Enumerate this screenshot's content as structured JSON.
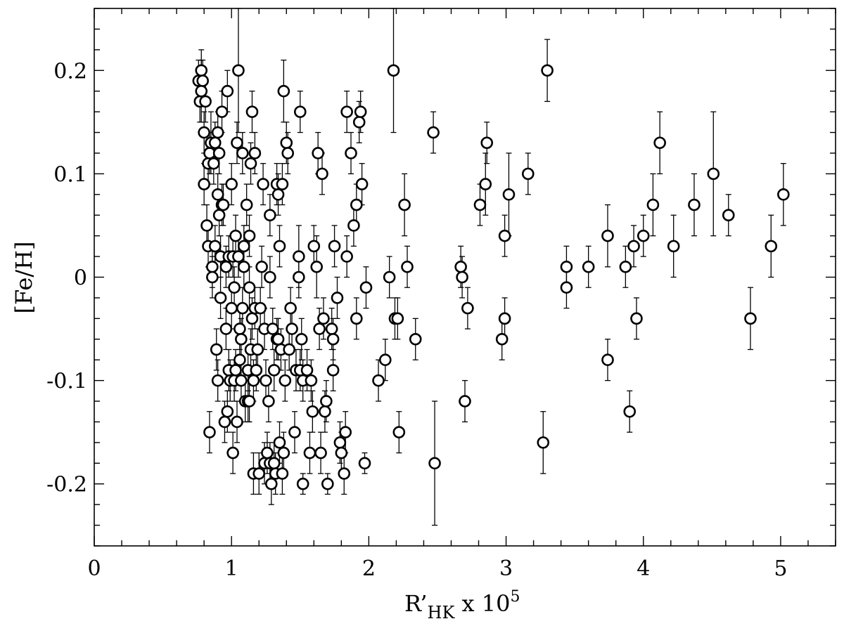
{
  "chart_data": {
    "type": "scatter",
    "xlabel": "R’HK x 10^5",
    "ylabel": "[Fe/H]",
    "xlim": [
      0,
      5.4
    ],
    "ylim": [
      -0.26,
      0.26
    ],
    "x_ticks": [
      0,
      1,
      2,
      3,
      4,
      5
    ],
    "y_ticks": [
      -0.2,
      -0.1,
      0,
      0.1,
      0.2
    ],
    "x_tick_labels": [
      "0",
      "1",
      "2",
      "3",
      "4",
      "5"
    ],
    "y_tick_labels": [
      "-0.2",
      "-0.1",
      "0",
      "0.1",
      "0.2"
    ],
    "marker": "open-circle",
    "grid": false,
    "points": [
      {
        "x": 0.76,
        "y": 0.19,
        "err": 0.02
      },
      {
        "x": 0.77,
        "y": 0.17,
        "err": 0.02
      },
      {
        "x": 0.78,
        "y": 0.2,
        "err": 0.02
      },
      {
        "x": 0.78,
        "y": 0.18,
        "err": 0.03
      },
      {
        "x": 0.79,
        "y": 0.19,
        "err": 0.02
      },
      {
        "x": 0.8,
        "y": 0.14,
        "err": 0.02
      },
      {
        "x": 0.8,
        "y": 0.09,
        "err": 0.02
      },
      {
        "x": 0.81,
        "y": 0.17,
        "err": 0.02
      },
      {
        "x": 0.82,
        "y": 0.05,
        "err": 0.02
      },
      {
        "x": 0.83,
        "y": 0.11,
        "err": 0.02
      },
      {
        "x": 0.83,
        "y": 0.03,
        "err": 0.02
      },
      {
        "x": 0.84,
        "y": 0.12,
        "err": 0.02
      },
      {
        "x": 0.84,
        "y": -0.15,
        "err": 0.02
      },
      {
        "x": 0.85,
        "y": 0.13,
        "err": 0.03
      },
      {
        "x": 0.86,
        "y": 0.01,
        "err": 0.02
      },
      {
        "x": 0.86,
        "y": 0.0,
        "err": 0.02
      },
      {
        "x": 0.87,
        "y": 0.11,
        "err": 0.02
      },
      {
        "x": 0.88,
        "y": 0.13,
        "err": 0.02
      },
      {
        "x": 0.88,
        "y": 0.03,
        "err": 0.02
      },
      {
        "x": 0.89,
        "y": -0.07,
        "err": 0.02
      },
      {
        "x": 0.9,
        "y": 0.14,
        "err": 0.02
      },
      {
        "x": 0.9,
        "y": 0.08,
        "err": 0.02
      },
      {
        "x": 0.9,
        "y": -0.1,
        "err": 0.02
      },
      {
        "x": 0.91,
        "y": 0.12,
        "err": 0.02
      },
      {
        "x": 0.91,
        "y": 0.06,
        "err": 0.02
      },
      {
        "x": 0.92,
        "y": 0.02,
        "err": 0.02
      },
      {
        "x": 0.92,
        "y": -0.02,
        "err": 0.02
      },
      {
        "x": 0.93,
        "y": 0.16,
        "err": 0.02
      },
      {
        "x": 0.93,
        "y": 0.07,
        "err": 0.02
      },
      {
        "x": 0.94,
        "y": 0.07,
        "err": 0.02
      },
      {
        "x": 0.95,
        "y": -0.14,
        "err": 0.02
      },
      {
        "x": 0.96,
        "y": 0.01,
        "err": 0.02
      },
      {
        "x": 0.96,
        "y": -0.05,
        "err": 0.02
      },
      {
        "x": 0.97,
        "y": 0.18,
        "err": 0.02
      },
      {
        "x": 0.97,
        "y": -0.13,
        "err": 0.02
      },
      {
        "x": 0.98,
        "y": 0.02,
        "err": 0.02
      },
      {
        "x": 0.98,
        "y": -0.09,
        "err": 0.02
      },
      {
        "x": 0.99,
        "y": -0.1,
        "err": 0.02
      },
      {
        "x": 1.0,
        "y": 0.09,
        "err": 0.02
      },
      {
        "x": 1.0,
        "y": -0.03,
        "err": 0.02
      },
      {
        "x": 1.01,
        "y": 0.02,
        "err": 0.02
      },
      {
        "x": 1.01,
        "y": -0.17,
        "err": 0.02
      },
      {
        "x": 1.02,
        "y": -0.01,
        "err": 0.02
      },
      {
        "x": 1.02,
        "y": -0.1,
        "err": 0.02
      },
      {
        "x": 1.03,
        "y": 0.04,
        "err": 0.02
      },
      {
        "x": 1.03,
        "y": -0.09,
        "err": 0.02
      },
      {
        "x": 1.04,
        "y": 0.13,
        "err": 0.02
      },
      {
        "x": 1.04,
        "y": -0.14,
        "err": 0.02
      },
      {
        "x": 1.05,
        "y": 0.2,
        "err": 0.06
      },
      {
        "x": 1.05,
        "y": 0.02,
        "err": 0.02
      },
      {
        "x": 1.06,
        "y": -0.08,
        "err": 0.02
      },
      {
        "x": 1.06,
        "y": -0.05,
        "err": 0.02
      },
      {
        "x": 1.07,
        "y": -0.1,
        "err": 0.02
      },
      {
        "x": 1.07,
        "y": -0.06,
        "err": 0.02
      },
      {
        "x": 1.08,
        "y": 0.12,
        "err": 0.02
      },
      {
        "x": 1.08,
        "y": -0.03,
        "err": 0.02
      },
      {
        "x": 1.09,
        "y": 0.03,
        "err": 0.02
      },
      {
        "x": 1.09,
        "y": 0.01,
        "err": 0.02
      },
      {
        "x": 1.1,
        "y": -0.12,
        "err": 0.02
      },
      {
        "x": 1.11,
        "y": 0.07,
        "err": 0.02
      },
      {
        "x": 1.12,
        "y": -0.12,
        "err": 0.02
      },
      {
        "x": 1.12,
        "y": -0.09,
        "err": 0.02
      },
      {
        "x": 1.13,
        "y": 0.04,
        "err": 0.02
      },
      {
        "x": 1.13,
        "y": -0.01,
        "err": 0.02
      },
      {
        "x": 1.13,
        "y": -0.12,
        "err": 0.02
      },
      {
        "x": 1.14,
        "y": 0.11,
        "err": 0.02
      },
      {
        "x": 1.14,
        "y": -0.07,
        "err": 0.02
      },
      {
        "x": 1.15,
        "y": 0.16,
        "err": 0.02
      },
      {
        "x": 1.15,
        "y": -0.04,
        "err": 0.02
      },
      {
        "x": 1.16,
        "y": -0.1,
        "err": 0.02
      },
      {
        "x": 1.16,
        "y": -0.19,
        "err": 0.02
      },
      {
        "x": 1.17,
        "y": 0.12,
        "err": 0.02
      },
      {
        "x": 1.17,
        "y": -0.03,
        "err": 0.02
      },
      {
        "x": 1.18,
        "y": -0.09,
        "err": 0.02
      },
      {
        "x": 1.19,
        "y": -0.07,
        "err": 0.02
      },
      {
        "x": 1.2,
        "y": -0.19,
        "err": 0.02
      },
      {
        "x": 1.21,
        "y": -0.03,
        "err": 0.02
      },
      {
        "x": 1.22,
        "y": 0.01,
        "err": 0.02
      },
      {
        "x": 1.23,
        "y": 0.09,
        "err": 0.02
      },
      {
        "x": 1.24,
        "y": -0.05,
        "err": 0.02
      },
      {
        "x": 1.24,
        "y": -0.18,
        "err": 0.02
      },
      {
        "x": 1.25,
        "y": -0.1,
        "err": 0.02
      },
      {
        "x": 1.26,
        "y": -0.17,
        "err": 0.02
      },
      {
        "x": 1.27,
        "y": -0.12,
        "err": 0.02
      },
      {
        "x": 1.28,
        "y": 0.06,
        "err": 0.02
      },
      {
        "x": 1.28,
        "y": 0.0,
        "err": 0.02
      },
      {
        "x": 1.28,
        "y": -0.18,
        "err": 0.02
      },
      {
        "x": 1.29,
        "y": -0.2,
        "err": 0.02
      },
      {
        "x": 1.3,
        "y": -0.05,
        "err": 0.02
      },
      {
        "x": 1.31,
        "y": -0.09,
        "err": 0.02
      },
      {
        "x": 1.31,
        "y": -0.18,
        "err": 0.02
      },
      {
        "x": 1.32,
        "y": -0.19,
        "err": 0.02
      },
      {
        "x": 1.33,
        "y": 0.09,
        "err": 0.02
      },
      {
        "x": 1.33,
        "y": -0.06,
        "err": 0.02
      },
      {
        "x": 1.34,
        "y": 0.08,
        "err": 0.02
      },
      {
        "x": 1.34,
        "y": -0.06,
        "err": 0.02
      },
      {
        "x": 1.35,
        "y": 0.03,
        "err": 0.02
      },
      {
        "x": 1.35,
        "y": -0.16,
        "err": 0.02
      },
      {
        "x": 1.36,
        "y": -0.07,
        "err": 0.02
      },
      {
        "x": 1.37,
        "y": 0.09,
        "err": 0.02
      },
      {
        "x": 1.37,
        "y": -0.19,
        "err": 0.02
      },
      {
        "x": 1.38,
        "y": 0.18,
        "err": 0.03
      },
      {
        "x": 1.38,
        "y": -0.17,
        "err": 0.02
      },
      {
        "x": 1.39,
        "y": -0.1,
        "err": 0.02
      },
      {
        "x": 1.4,
        "y": 0.13,
        "err": 0.02
      },
      {
        "x": 1.41,
        "y": 0.12,
        "err": 0.02
      },
      {
        "x": 1.42,
        "y": -0.07,
        "err": 0.02
      },
      {
        "x": 1.43,
        "y": -0.03,
        "err": 0.02
      },
      {
        "x": 1.44,
        "y": -0.05,
        "err": 0.02
      },
      {
        "x": 1.46,
        "y": -0.15,
        "err": 0.02
      },
      {
        "x": 1.47,
        "y": -0.09,
        "err": 0.02
      },
      {
        "x": 1.49,
        "y": 0.02,
        "err": 0.03
      },
      {
        "x": 1.49,
        "y": 0.0,
        "err": 0.02
      },
      {
        "x": 1.5,
        "y": 0.16,
        "err": 0.02
      },
      {
        "x": 1.5,
        "y": -0.09,
        "err": 0.02
      },
      {
        "x": 1.51,
        "y": -0.06,
        "err": 0.02
      },
      {
        "x": 1.52,
        "y": -0.1,
        "err": 0.02
      },
      {
        "x": 1.52,
        "y": -0.2,
        "err": 0.01
      },
      {
        "x": 1.55,
        "y": -0.09,
        "err": 0.02
      },
      {
        "x": 1.57,
        "y": -0.17,
        "err": 0.02
      },
      {
        "x": 1.58,
        "y": -0.1,
        "err": 0.02
      },
      {
        "x": 1.59,
        "y": -0.13,
        "err": 0.02
      },
      {
        "x": 1.6,
        "y": 0.03,
        "err": 0.02
      },
      {
        "x": 1.62,
        "y": 0.01,
        "err": 0.03
      },
      {
        "x": 1.63,
        "y": 0.12,
        "err": 0.02
      },
      {
        "x": 1.64,
        "y": -0.05,
        "err": 0.02
      },
      {
        "x": 1.65,
        "y": -0.17,
        "err": 0.02
      },
      {
        "x": 1.66,
        "y": 0.1,
        "err": 0.02
      },
      {
        "x": 1.67,
        "y": -0.04,
        "err": 0.02
      },
      {
        "x": 1.68,
        "y": -0.13,
        "err": 0.02
      },
      {
        "x": 1.69,
        "y": -0.12,
        "err": 0.02
      },
      {
        "x": 1.7,
        "y": -0.2,
        "err": 0.01
      },
      {
        "x": 1.73,
        "y": -0.05,
        "err": 0.02
      },
      {
        "x": 1.74,
        "y": -0.06,
        "err": 0.02
      },
      {
        "x": 1.74,
        "y": -0.09,
        "err": 0.02
      },
      {
        "x": 1.75,
        "y": 0.03,
        "err": 0.02
      },
      {
        "x": 1.77,
        "y": -0.02,
        "err": 0.02
      },
      {
        "x": 1.79,
        "y": -0.16,
        "err": 0.02
      },
      {
        "x": 1.8,
        "y": -0.17,
        "err": 0.02
      },
      {
        "x": 1.82,
        "y": -0.19,
        "err": 0.02
      },
      {
        "x": 1.83,
        "y": -0.15,
        "err": 0.02
      },
      {
        "x": 1.84,
        "y": 0.02,
        "err": 0.02
      },
      {
        "x": 1.84,
        "y": 0.16,
        "err": 0.02
      },
      {
        "x": 1.87,
        "y": 0.12,
        "err": 0.02
      },
      {
        "x": 1.89,
        "y": 0.05,
        "err": 0.02
      },
      {
        "x": 1.91,
        "y": 0.07,
        "err": 0.02
      },
      {
        "x": 1.91,
        "y": -0.04,
        "err": 0.02
      },
      {
        "x": 1.93,
        "y": 0.15,
        "err": 0.02
      },
      {
        "x": 1.94,
        "y": 0.16,
        "err": 0.02
      },
      {
        "x": 1.95,
        "y": 0.09,
        "err": 0.02
      },
      {
        "x": 1.97,
        "y": -0.18,
        "err": 0.01
      },
      {
        "x": 1.98,
        "y": -0.01,
        "err": 0.02
      },
      {
        "x": 2.07,
        "y": -0.1,
        "err": 0.02
      },
      {
        "x": 2.12,
        "y": -0.08,
        "err": 0.02
      },
      {
        "x": 2.15,
        "y": 0.0,
        "err": 0.02
      },
      {
        "x": 2.18,
        "y": 0.2,
        "err": 0.06
      },
      {
        "x": 2.19,
        "y": -0.04,
        "err": 0.02
      },
      {
        "x": 2.21,
        "y": -0.04,
        "err": 0.02
      },
      {
        "x": 2.22,
        "y": -0.15,
        "err": 0.02
      },
      {
        "x": 2.26,
        "y": 0.07,
        "err": 0.03
      },
      {
        "x": 2.28,
        "y": 0.01,
        "err": 0.02
      },
      {
        "x": 2.34,
        "y": -0.06,
        "err": 0.02
      },
      {
        "x": 2.47,
        "y": 0.14,
        "err": 0.02
      },
      {
        "x": 2.48,
        "y": -0.18,
        "err": 0.06
      },
      {
        "x": 2.67,
        "y": 0.01,
        "err": 0.02
      },
      {
        "x": 2.68,
        "y": 0.0,
        "err": 0.02
      },
      {
        "x": 2.7,
        "y": -0.12,
        "err": 0.02
      },
      {
        "x": 2.72,
        "y": -0.03,
        "err": 0.02
      },
      {
        "x": 2.81,
        "y": 0.07,
        "err": 0.02
      },
      {
        "x": 2.85,
        "y": 0.09,
        "err": 0.03
      },
      {
        "x": 2.86,
        "y": 0.13,
        "err": 0.02
      },
      {
        "x": 2.97,
        "y": -0.06,
        "err": 0.02
      },
      {
        "x": 2.99,
        "y": 0.04,
        "err": 0.02
      },
      {
        "x": 2.99,
        "y": -0.04,
        "err": 0.02
      },
      {
        "x": 3.02,
        "y": 0.08,
        "err": 0.04
      },
      {
        "x": 3.16,
        "y": 0.1,
        "err": 0.02
      },
      {
        "x": 3.27,
        "y": -0.16,
        "err": 0.03
      },
      {
        "x": 3.3,
        "y": 0.2,
        "err": 0.03
      },
      {
        "x": 3.44,
        "y": 0.01,
        "err": 0.02
      },
      {
        "x": 3.44,
        "y": -0.01,
        "err": 0.02
      },
      {
        "x": 3.6,
        "y": 0.01,
        "err": 0.02
      },
      {
        "x": 3.74,
        "y": 0.04,
        "err": 0.03
      },
      {
        "x": 3.74,
        "y": -0.08,
        "err": 0.02
      },
      {
        "x": 3.87,
        "y": 0.01,
        "err": 0.02
      },
      {
        "x": 3.9,
        "y": -0.13,
        "err": 0.02
      },
      {
        "x": 3.93,
        "y": 0.03,
        "err": 0.02
      },
      {
        "x": 3.95,
        "y": -0.04,
        "err": 0.02
      },
      {
        "x": 4.0,
        "y": 0.04,
        "err": 0.02
      },
      {
        "x": 4.07,
        "y": 0.07,
        "err": 0.03
      },
      {
        "x": 4.12,
        "y": 0.13,
        "err": 0.03
      },
      {
        "x": 4.22,
        "y": 0.03,
        "err": 0.03
      },
      {
        "x": 4.37,
        "y": 0.07,
        "err": 0.03
      },
      {
        "x": 4.51,
        "y": 0.1,
        "err": 0.06
      },
      {
        "x": 4.62,
        "y": 0.06,
        "err": 0.02
      },
      {
        "x": 4.78,
        "y": -0.04,
        "err": 0.03
      },
      {
        "x": 4.93,
        "y": 0.03,
        "err": 0.03
      },
      {
        "x": 5.02,
        "y": 0.08,
        "err": 0.03
      }
    ]
  }
}
